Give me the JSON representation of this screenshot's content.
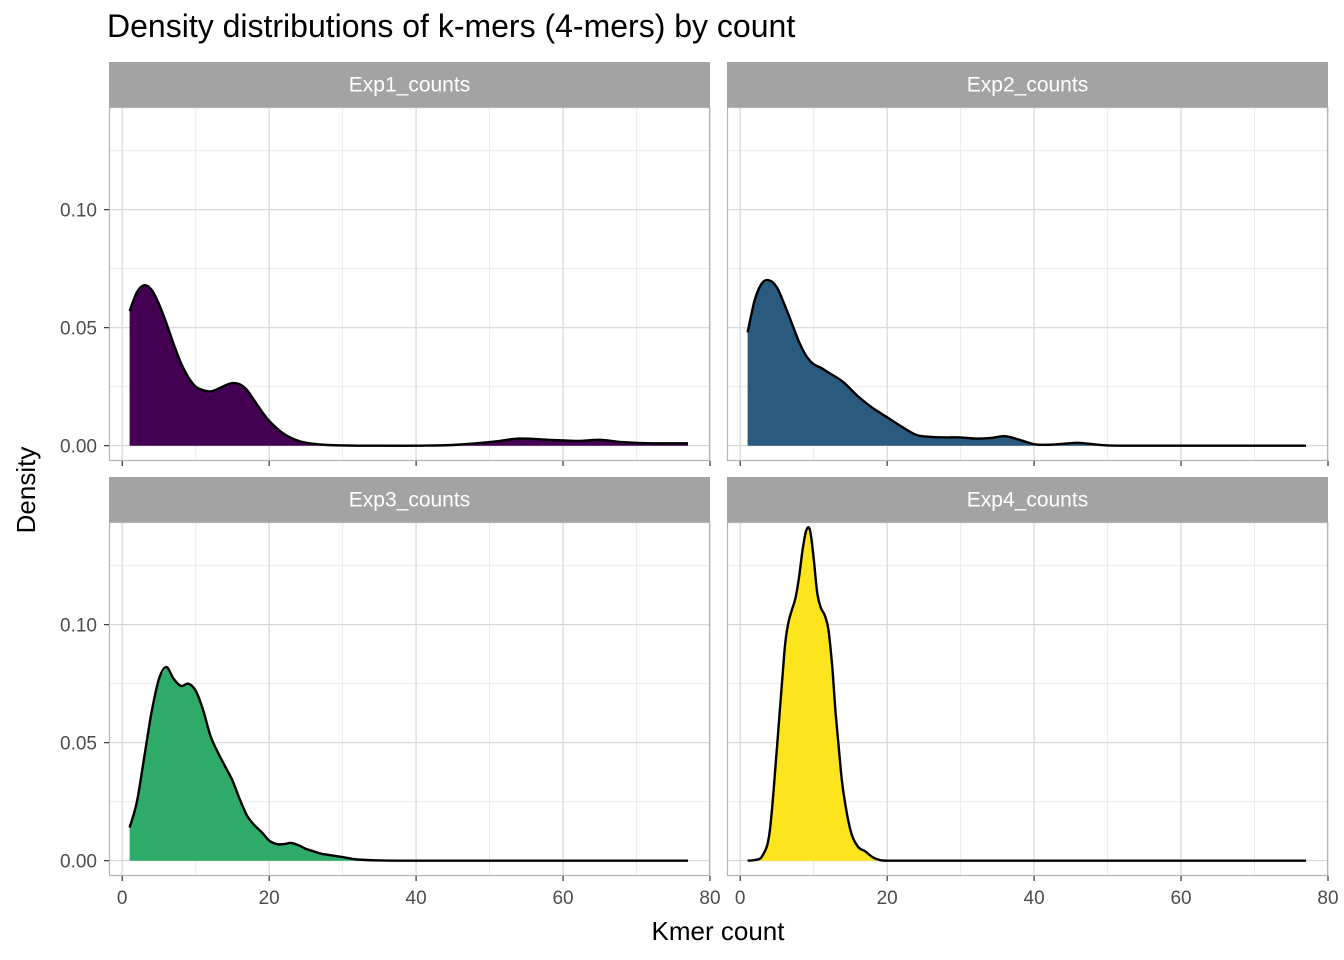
{
  "chart_data": {
    "type": "area",
    "title": "Density distributions of k-mers (4-mers) by count",
    "xlabel": "Kmer count",
    "ylabel": "Density",
    "xlim": [
      -1.8,
      80.0
    ],
    "ylim": [
      -0.0065,
      0.1435
    ],
    "x_ticks": [
      0,
      20,
      40,
      60,
      80
    ],
    "x_tick_labels": [
      "0",
      "20",
      "40",
      "60",
      "80"
    ],
    "y_ticks": [
      0.0,
      0.05,
      0.1
    ],
    "y_tick_labels": [
      "0.00",
      "0.05",
      "0.10"
    ],
    "grid": true,
    "legend": "none",
    "layout": "facet 2x2",
    "panels": [
      {
        "label": "Exp1_counts",
        "fill": "#440154",
        "x": [
          1,
          2,
          3,
          4,
          5,
          6,
          7,
          8,
          9,
          10,
          11,
          12,
          13,
          14,
          15,
          16,
          17,
          18,
          19,
          20,
          22,
          24,
          26,
          28,
          30,
          32,
          35,
          40,
          45,
          50,
          54,
          58,
          62,
          65,
          68,
          72,
          77
        ],
        "y": [
          0.057,
          0.065,
          0.068,
          0.066,
          0.06,
          0.052,
          0.043,
          0.035,
          0.029,
          0.025,
          0.0235,
          0.023,
          0.024,
          0.0255,
          0.0265,
          0.026,
          0.0235,
          0.019,
          0.0145,
          0.0105,
          0.005,
          0.002,
          0.0008,
          0.0003,
          0.0001,
          0.0,
          0.0,
          0.0,
          0.0003,
          0.0015,
          0.003,
          0.0025,
          0.002,
          0.0025,
          0.0015,
          0.001,
          0.001
        ]
      },
      {
        "label": "Exp2_counts",
        "fill": "#2a5a7e",
        "x": [
          1,
          2,
          3,
          4,
          5,
          6,
          7,
          8,
          9,
          10,
          11,
          12,
          14,
          16,
          18,
          20,
          22,
          24,
          26,
          28,
          30,
          32,
          34,
          36,
          38,
          40,
          42,
          44,
          46,
          48,
          50,
          55,
          60,
          65,
          70,
          77
        ],
        "y": [
          0.048,
          0.062,
          0.069,
          0.07,
          0.067,
          0.06,
          0.052,
          0.044,
          0.038,
          0.0345,
          0.033,
          0.031,
          0.027,
          0.021,
          0.016,
          0.012,
          0.008,
          0.0045,
          0.0037,
          0.0035,
          0.0035,
          0.003,
          0.0032,
          0.004,
          0.0025,
          0.0006,
          0.0004,
          0.0008,
          0.0012,
          0.0006,
          0.0001,
          0.0,
          0.0,
          0.0,
          0.0,
          0.0
        ]
      },
      {
        "label": "Exp3_counts",
        "fill": "#2eab69",
        "x": [
          1,
          2,
          3,
          4,
          5,
          6,
          7,
          8,
          9,
          10,
          11,
          12,
          13,
          14,
          15,
          16,
          17,
          18,
          19,
          20,
          21,
          22,
          23,
          24,
          25,
          26,
          27,
          28,
          30,
          32,
          35,
          40,
          50,
          60,
          70,
          77
        ],
        "y": [
          0.014,
          0.025,
          0.044,
          0.063,
          0.077,
          0.082,
          0.077,
          0.074,
          0.075,
          0.072,
          0.064,
          0.053,
          0.046,
          0.04,
          0.034,
          0.026,
          0.019,
          0.015,
          0.012,
          0.0085,
          0.007,
          0.007,
          0.0075,
          0.0065,
          0.005,
          0.004,
          0.003,
          0.0025,
          0.0015,
          0.0005,
          0.0001,
          0.0,
          0.0,
          0.0,
          0.0,
          0.0
        ]
      },
      {
        "label": "Exp4_counts",
        "fill": "#fde51d",
        "x": [
          1,
          2,
          3,
          4,
          5,
          6,
          6.5,
          7,
          7.5,
          8,
          8.5,
          9,
          9.5,
          10,
          10.5,
          11,
          11.5,
          12,
          12.5,
          13,
          13.5,
          14,
          15,
          16,
          17,
          18,
          19,
          20,
          25,
          30,
          40,
          50,
          60,
          70,
          77
        ],
        "y": [
          0.0,
          0.0003,
          0.002,
          0.012,
          0.048,
          0.088,
          0.1,
          0.106,
          0.111,
          0.12,
          0.132,
          0.14,
          0.14,
          0.128,
          0.113,
          0.107,
          0.104,
          0.098,
          0.083,
          0.062,
          0.045,
          0.03,
          0.013,
          0.006,
          0.004,
          0.0015,
          0.0003,
          0.0,
          0.0,
          0.0,
          0.0,
          0.0,
          0.0,
          0.0,
          0.0
        ]
      }
    ]
  }
}
